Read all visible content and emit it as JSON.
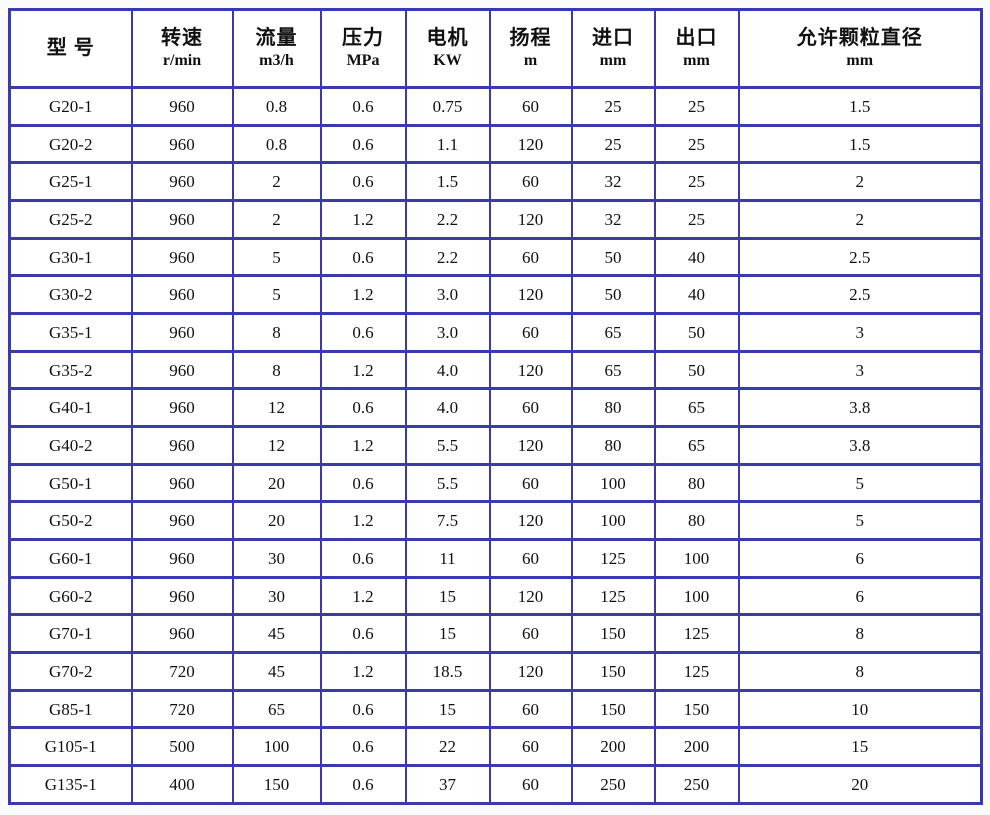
{
  "colors": {
    "border": "#3a3aac",
    "text": "#101010",
    "table_background": "#ffffff",
    "page_background": "#fafafa"
  },
  "table": {
    "columns": [
      {
        "title": "型 号",
        "unit": ""
      },
      {
        "title": "转速",
        "unit": "r/min"
      },
      {
        "title": "流量",
        "unit": "m3/h"
      },
      {
        "title": "压力",
        "unit": "MPa"
      },
      {
        "title": "电机",
        "unit": "KW"
      },
      {
        "title": "扬程",
        "unit": "m"
      },
      {
        "title": "进口",
        "unit": "mm"
      },
      {
        "title": "出口",
        "unit": "mm"
      },
      {
        "title": "允许颗粒直径",
        "unit": "mm"
      }
    ],
    "rows": [
      [
        "G20-1",
        "960",
        "0.8",
        "0.6",
        "0.75",
        "60",
        "25",
        "25",
        "1.5"
      ],
      [
        "G20-2",
        "960",
        "0.8",
        "0.6",
        "1.1",
        "120",
        "25",
        "25",
        "1.5"
      ],
      [
        "G25-1",
        "960",
        "2",
        "0.6",
        "1.5",
        "60",
        "32",
        "25",
        "2"
      ],
      [
        "G25-2",
        "960",
        "2",
        "1.2",
        "2.2",
        "120",
        "32",
        "25",
        "2"
      ],
      [
        "G30-1",
        "960",
        "5",
        "0.6",
        "2.2",
        "60",
        "50",
        "40",
        "2.5"
      ],
      [
        "G30-2",
        "960",
        "5",
        "1.2",
        "3.0",
        "120",
        "50",
        "40",
        "2.5"
      ],
      [
        "G35-1",
        "960",
        "8",
        "0.6",
        "3.0",
        "60",
        "65",
        "50",
        "3"
      ],
      [
        "G35-2",
        "960",
        "8",
        "1.2",
        "4.0",
        "120",
        "65",
        "50",
        "3"
      ],
      [
        "G40-1",
        "960",
        "12",
        "0.6",
        "4.0",
        "60",
        "80",
        "65",
        "3.8"
      ],
      [
        "G40-2",
        "960",
        "12",
        "1.2",
        "5.5",
        "120",
        "80",
        "65",
        "3.8"
      ],
      [
        "G50-1",
        "960",
        "20",
        "0.6",
        "5.5",
        "60",
        "100",
        "80",
        "5"
      ],
      [
        "G50-2",
        "960",
        "20",
        "1.2",
        "7.5",
        "120",
        "100",
        "80",
        "5"
      ],
      [
        "G60-1",
        "960",
        "30",
        "0.6",
        "11",
        "60",
        "125",
        "100",
        "6"
      ],
      [
        "G60-2",
        "960",
        "30",
        "1.2",
        "15",
        "120",
        "125",
        "100",
        "6"
      ],
      [
        "G70-1",
        "960",
        "45",
        "0.6",
        "15",
        "60",
        "150",
        "125",
        "8"
      ],
      [
        "G70-2",
        "720",
        "45",
        "1.2",
        "18.5",
        "120",
        "150",
        "125",
        "8"
      ],
      [
        "G85-1",
        "720",
        "65",
        "0.6",
        "15",
        "60",
        "150",
        "150",
        "10"
      ],
      [
        "G105-1",
        "500",
        "100",
        "0.6",
        "22",
        "60",
        "200",
        "200",
        "15"
      ],
      [
        "G135-1",
        "400",
        "150",
        "0.6",
        "37",
        "60",
        "250",
        "250",
        "20"
      ]
    ]
  }
}
